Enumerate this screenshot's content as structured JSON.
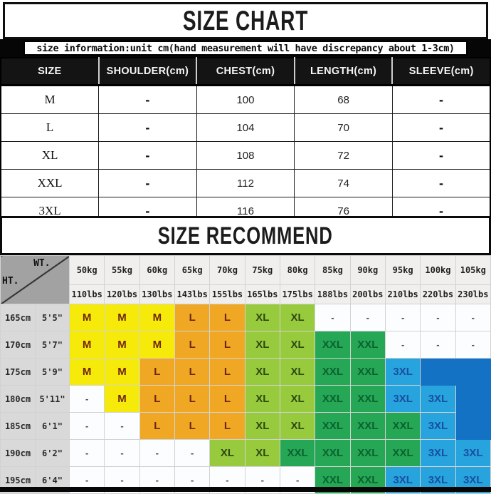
{
  "size_chart": {
    "title": "SIZE CHART",
    "note": "size information:unit cm(hand measurement will have discrepancy about 1-3cm)",
    "columns": [
      "SIZE",
      "SHOULDER(cm)",
      "CHEST(cm)",
      "LENGTH(cm)",
      "SLEEVE(cm)"
    ],
    "rows": [
      [
        "M",
        "-",
        "100",
        "68",
        "-"
      ],
      [
        "L",
        "-",
        "104",
        "70",
        "-"
      ],
      [
        "XL",
        "-",
        "108",
        "72",
        "-"
      ],
      [
        "XXL",
        "-",
        "112",
        "74",
        "-"
      ],
      [
        "3XL",
        "-",
        "116",
        "76",
        "-"
      ]
    ]
  },
  "size_recommend": {
    "title": "SIZE RECOMMEND",
    "corner_top": "WT.",
    "corner_bottom": "HT.",
    "weights_kg": [
      "50kg",
      "55kg",
      "60kg",
      "65kg",
      "70kg",
      "75kg",
      "80kg",
      "85kg",
      "90kg",
      "95kg",
      "100kg",
      "105kg"
    ],
    "weights_lbs": [
      "110lbs",
      "120lbs",
      "130lbs",
      "143lbs",
      "155lbs",
      "165lbs",
      "175lbs",
      "188lbs",
      "200lbs",
      "210lbs",
      "220lbs",
      "230lbs"
    ],
    "rows": [
      {
        "height_cm": "165cm",
        "height_ft": "5'5\"",
        "cells": [
          "M",
          "M",
          "M",
          "L",
          "L",
          "XL",
          "XL",
          "-",
          "-",
          "-",
          "-",
          "-"
        ]
      },
      {
        "height_cm": "170cm",
        "height_ft": "5'7\"",
        "cells": [
          "M",
          "M",
          "M",
          "L",
          "L",
          "XL",
          "XL",
          "XXL",
          "XXL",
          "-",
          "-",
          "-"
        ]
      },
      {
        "height_cm": "175cm",
        "height_ft": "5'9\"",
        "cells": [
          "M",
          "M",
          "L",
          "L",
          "L",
          "XL",
          "XL",
          "XXL",
          "XXL",
          "3XL",
          "",
          ""
        ]
      },
      {
        "height_cm": "180cm",
        "height_ft": "5'11\"",
        "cells": [
          "-",
          "M",
          "L",
          "L",
          "L",
          "XL",
          "XL",
          "XXL",
          "XXL",
          "3XL",
          "3XL",
          ""
        ]
      },
      {
        "height_cm": "185cm",
        "height_ft": "6'1\"",
        "cells": [
          "-",
          "-",
          "L",
          "L",
          "L",
          "XL",
          "XL",
          "XXL",
          "XXL",
          "XXL",
          "3XL",
          ""
        ]
      },
      {
        "height_cm": "190cm",
        "height_ft": "6'2\"",
        "cells": [
          "-",
          "-",
          "-",
          "-",
          "XL",
          "XL",
          "XXL",
          "XXL",
          "XXL",
          "XXL",
          "3XL",
          "3XL"
        ]
      },
      {
        "height_cm": "195cm",
        "height_ft": "6'4\"",
        "cells": [
          "-",
          "-",
          "-",
          "-",
          "-",
          "-",
          "-",
          "XXL",
          "XXL",
          "3XL",
          "3XL",
          "3XL"
        ]
      }
    ],
    "size_colors": {
      "M": {
        "bg": "#f6ea0b",
        "fg": "#6e2610"
      },
      "L": {
        "bg": "#f0a824",
        "fg": "#6e2610"
      },
      "XL": {
        "bg": "#98ca3e",
        "fg": "#2d490f"
      },
      "XXL": {
        "bg": "#25a755",
        "fg": "#0c6130"
      },
      "3XL": {
        "bg": "#27a3dd",
        "fg": "#194f9e"
      },
      "dash": {
        "bg": "#fbfdfe",
        "fg": "#4c4c4c"
      },
      "empty": {
        "bg": "#1372c4",
        "fg": "#1372c4"
      }
    }
  }
}
